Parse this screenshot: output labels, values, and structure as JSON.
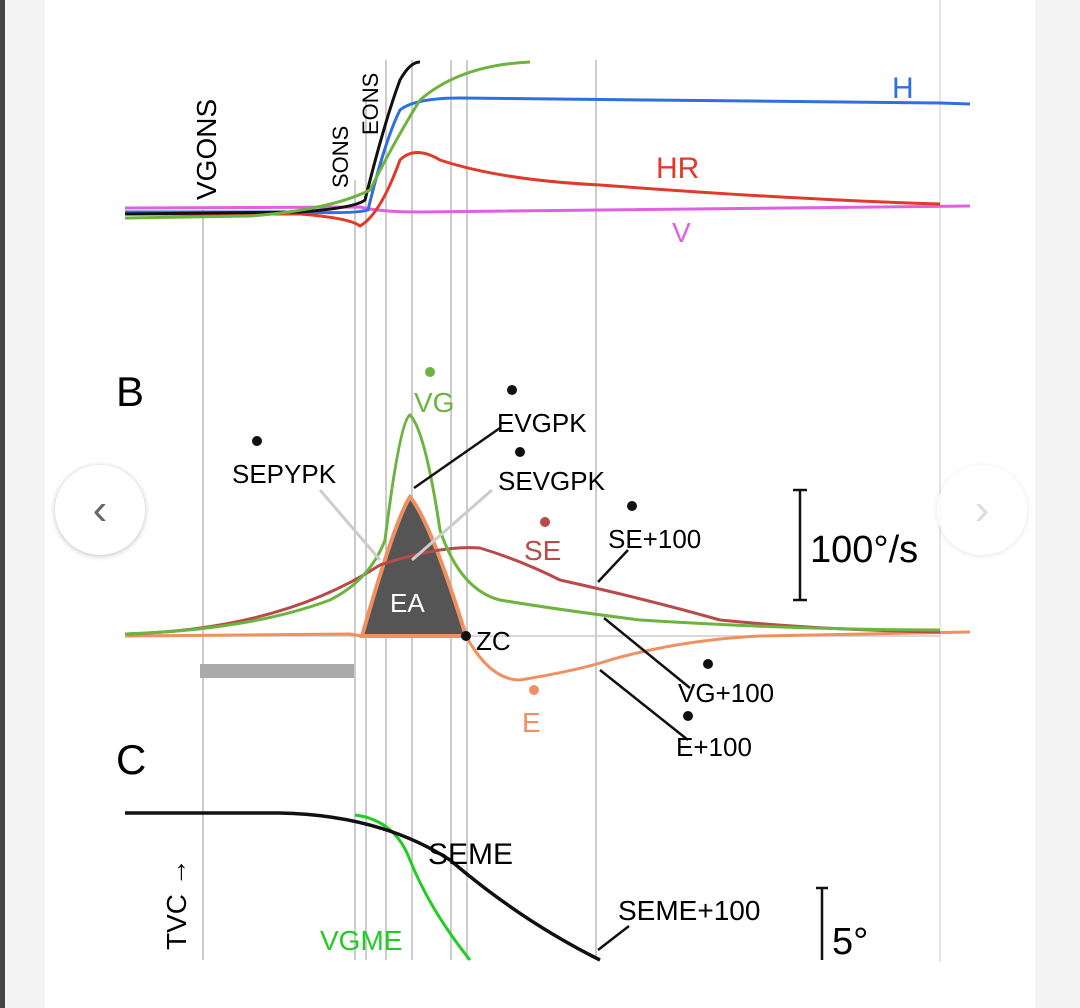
{
  "viewer": {
    "prev_icon": "chevron-left-icon",
    "next_icon": "chevron-right-icon",
    "prev_glyph": "‹",
    "next_glyph": "›"
  },
  "figure": {
    "panel_a": {
      "markers": {
        "vg_ons": "VGONS",
        "s_ons": "SONS",
        "e_ons": "EONS"
      },
      "traces": {
        "h": "H",
        "hr": "HR",
        "v": "V"
      }
    },
    "panel_b": {
      "label": "B",
      "annotations": {
        "vg": "VG",
        "e_vgpk": "EVGPK",
        "se_pypk": "SEPYPK",
        "se_vgpk": "SEVGPK",
        "se": "SE",
        "se_100": "SE+100",
        "ea": "EA",
        "zc": "ZC",
        "vg_100": "VG+100",
        "e_100": "E+100",
        "e": "E"
      },
      "scale_bar": "100°/s"
    },
    "panel_c": {
      "label": "C",
      "annotations": {
        "tvc": "TVC →",
        "seme": "SEME",
        "seme_100": "SEME+100",
        "vgme": "VGME"
      },
      "scale_bar": "5°"
    },
    "colors": {
      "h": "#2f6fe0",
      "hr": "#e03a2a",
      "v": "#e060e0",
      "vg": "#6db33f",
      "se": "#b84a4a",
      "e": "#f09060",
      "vgme": "#22cc22"
    }
  }
}
